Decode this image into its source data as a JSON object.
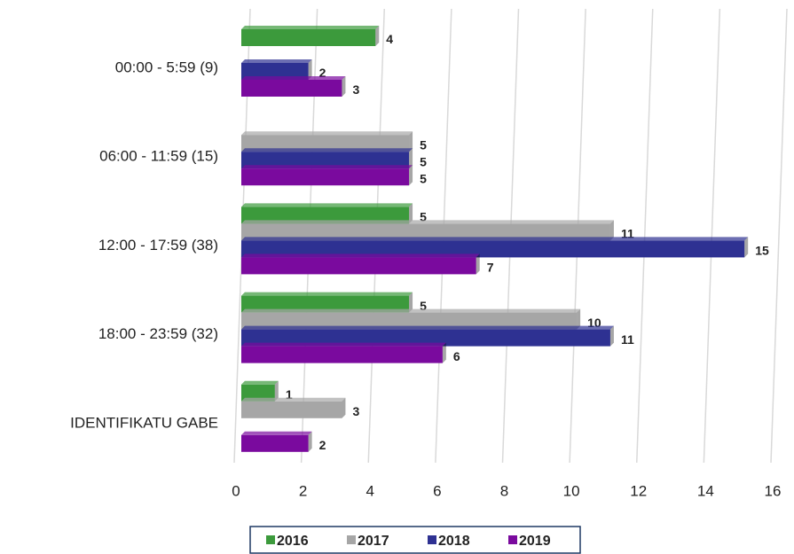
{
  "chart_data": {
    "type": "bar",
    "orientation": "horizontal",
    "categories": [
      "00:00 - 5:59 (9)",
      "06:00 - 11:59 (15)",
      "12:00 - 17:59 (38)",
      "18:00 - 23:59 (32)",
      "IDENTIFIKATU GABE"
    ],
    "series": [
      {
        "name": "2016",
        "color": "#3c9a3c",
        "values": [
          4,
          null,
          5,
          5,
          1
        ]
      },
      {
        "name": "2017",
        "color": "#a6a6a6",
        "values": [
          null,
          5,
          11,
          10,
          3
        ]
      },
      {
        "name": "2018",
        "color": "#2e3192",
        "values": [
          2,
          5,
          15,
          11,
          null
        ]
      },
      {
        "name": "2019",
        "color": "#7a0a9e",
        "values": [
          3,
          5,
          7,
          6,
          2
        ]
      }
    ],
    "xlim": [
      0,
      16
    ],
    "xticks": [
      0,
      2,
      4,
      6,
      8,
      10,
      12,
      14,
      16
    ],
    "grid": true,
    "legend": "bottom"
  }
}
